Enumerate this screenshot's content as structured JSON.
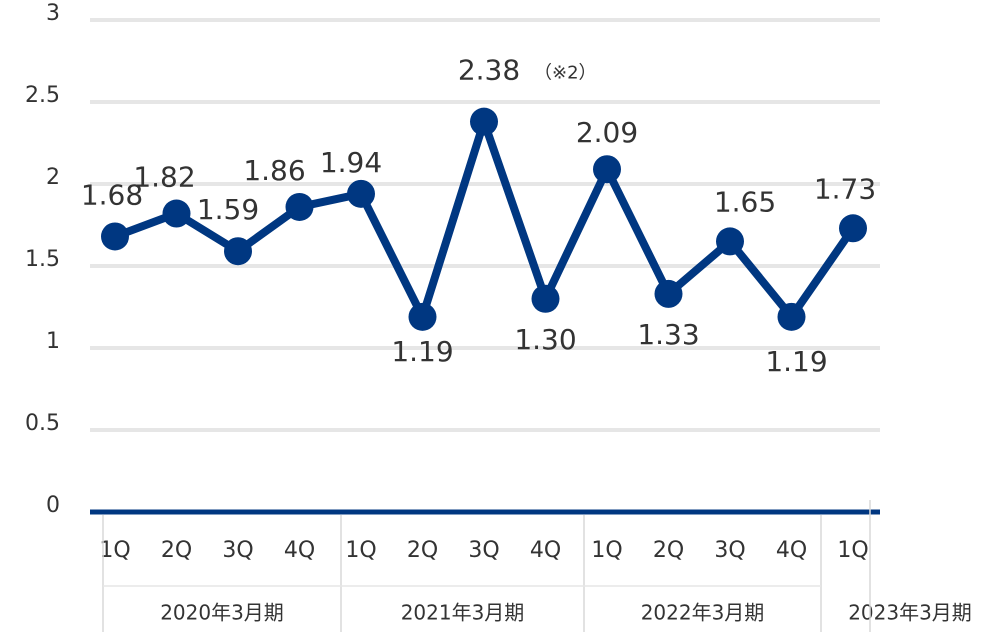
{
  "chart_data": {
    "type": "line",
    "groups": [
      {
        "name": "2020年3月期",
        "categories": [
          "1Q",
          "2Q",
          "3Q",
          "4Q"
        ]
      },
      {
        "name": "2021年3月期",
        "categories": [
          "1Q",
          "2Q",
          "3Q",
          "4Q"
        ]
      },
      {
        "name": "2022年3月期",
        "categories": [
          "1Q",
          "2Q",
          "3Q",
          "4Q"
        ]
      },
      {
        "name": "2023年3月期",
        "categories": [
          "1Q"
        ]
      }
    ],
    "values": [
      1.68,
      1.82,
      1.59,
      1.86,
      1.94,
      1.19,
      2.38,
      1.3,
      2.09,
      1.33,
      1.65,
      1.19,
      1.73
    ],
    "value_labels": [
      "1.68",
      "1.82",
      "1.59",
      "1.86",
      "1.94",
      "1.19",
      "2.38",
      "1.30",
      "2.09",
      "1.33",
      "1.65",
      "1.19",
      "1.73"
    ],
    "annotation": "（※2）",
    "color": "#003781",
    "ylim": [
      0,
      3
    ],
    "yticks": [
      0,
      0.5,
      1,
      1.5,
      2,
      2.5,
      3
    ],
    "grid": true
  }
}
